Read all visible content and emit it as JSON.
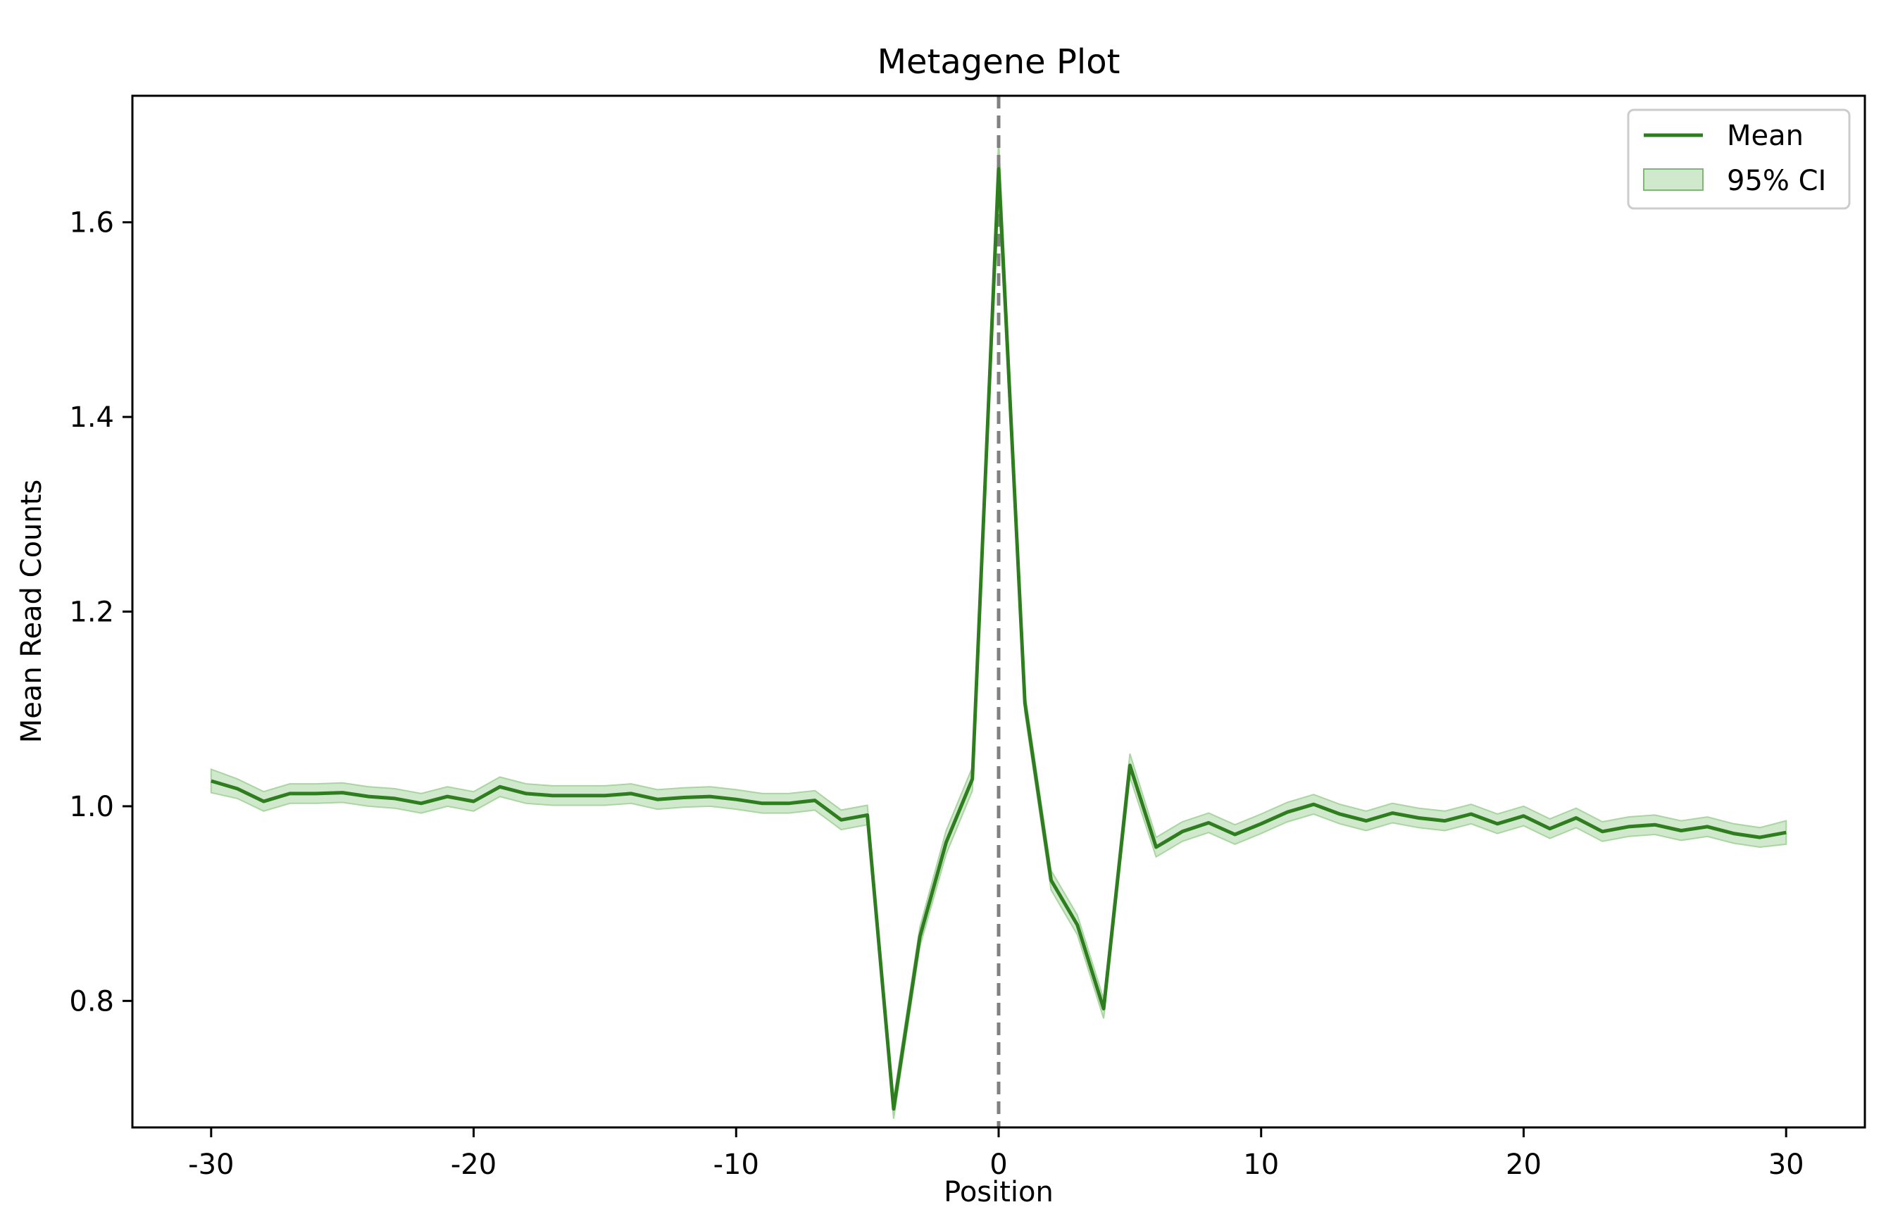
{
  "chart_data": {
    "type": "line",
    "title": "Metagene Plot",
    "xlabel": "Position",
    "ylabel": "Mean Read Counts",
    "xlim": [
      -33,
      33
    ],
    "ylim": [
      0.67,
      1.73
    ],
    "xticks": [
      -30,
      -20,
      -10,
      0,
      10,
      20,
      30
    ],
    "xtick_labels": [
      "-30",
      "-20",
      "-10",
      "0",
      "10",
      "20",
      "30"
    ],
    "yticks": [
      0.8,
      1.0,
      1.2,
      1.4,
      1.6
    ],
    "ytick_labels": [
      "0.8",
      "1.0",
      "1.2",
      "1.4",
      "1.6"
    ],
    "grid": false,
    "legend_position": "top-right",
    "reference_line": {
      "x": 0,
      "style": "dashed",
      "color": "#808080"
    },
    "x": [
      -30,
      -29,
      -28,
      -27,
      -26,
      -25,
      -24,
      -23,
      -22,
      -21,
      -20,
      -19,
      -18,
      -17,
      -16,
      -15,
      -14,
      -13,
      -12,
      -11,
      -10,
      -9,
      -8,
      -7,
      -6,
      -5,
      -4,
      -3,
      -2,
      -1,
      0,
      1,
      2,
      3,
      4,
      5,
      6,
      7,
      8,
      9,
      10,
      11,
      12,
      13,
      14,
      15,
      16,
      17,
      18,
      19,
      20,
      21,
      22,
      23,
      24,
      25,
      26,
      27,
      28,
      29,
      30
    ],
    "series": [
      {
        "name": "Mean",
        "color": "#2e7d1e",
        "values": [
          1.026,
          1.018,
          1.005,
          1.013,
          1.013,
          1.014,
          1.01,
          1.008,
          1.003,
          1.01,
          1.005,
          1.02,
          1.013,
          1.011,
          1.011,
          1.011,
          1.013,
          1.007,
          1.009,
          1.01,
          1.007,
          1.003,
          1.003,
          1.006,
          0.986,
          0.991,
          0.689,
          0.866,
          0.963,
          1.028,
          1.655,
          1.106,
          0.924,
          0.878,
          0.792,
          1.042,
          0.958,
          0.974,
          0.983,
          0.971,
          0.982,
          0.994,
          1.002,
          0.992,
          0.985,
          0.993,
          0.988,
          0.985,
          0.992,
          0.982,
          0.99,
          0.977,
          0.988,
          0.974,
          0.979,
          0.981,
          0.975,
          0.979,
          0.972,
          0.968,
          0.973
        ],
        "ci_half_width": [
          0.012,
          0.01,
          0.01,
          0.01,
          0.01,
          0.01,
          0.01,
          0.01,
          0.01,
          0.01,
          0.01,
          0.01,
          0.01,
          0.01,
          0.01,
          0.01,
          0.01,
          0.01,
          0.01,
          0.01,
          0.01,
          0.01,
          0.01,
          0.01,
          0.01,
          0.01,
          0.01,
          0.01,
          0.012,
          0.012,
          0.03,
          0.01,
          0.01,
          0.01,
          0.01,
          0.012,
          0.01,
          0.01,
          0.01,
          0.01,
          0.01,
          0.01,
          0.01,
          0.01,
          0.01,
          0.01,
          0.01,
          0.01,
          0.01,
          0.01,
          0.01,
          0.01,
          0.01,
          0.01,
          0.01,
          0.01,
          0.01,
          0.01,
          0.01,
          0.01,
          0.012
        ]
      }
    ],
    "band": {
      "name": "95% CI",
      "color": "#a9d5a0",
      "opacity": 0.55
    }
  }
}
